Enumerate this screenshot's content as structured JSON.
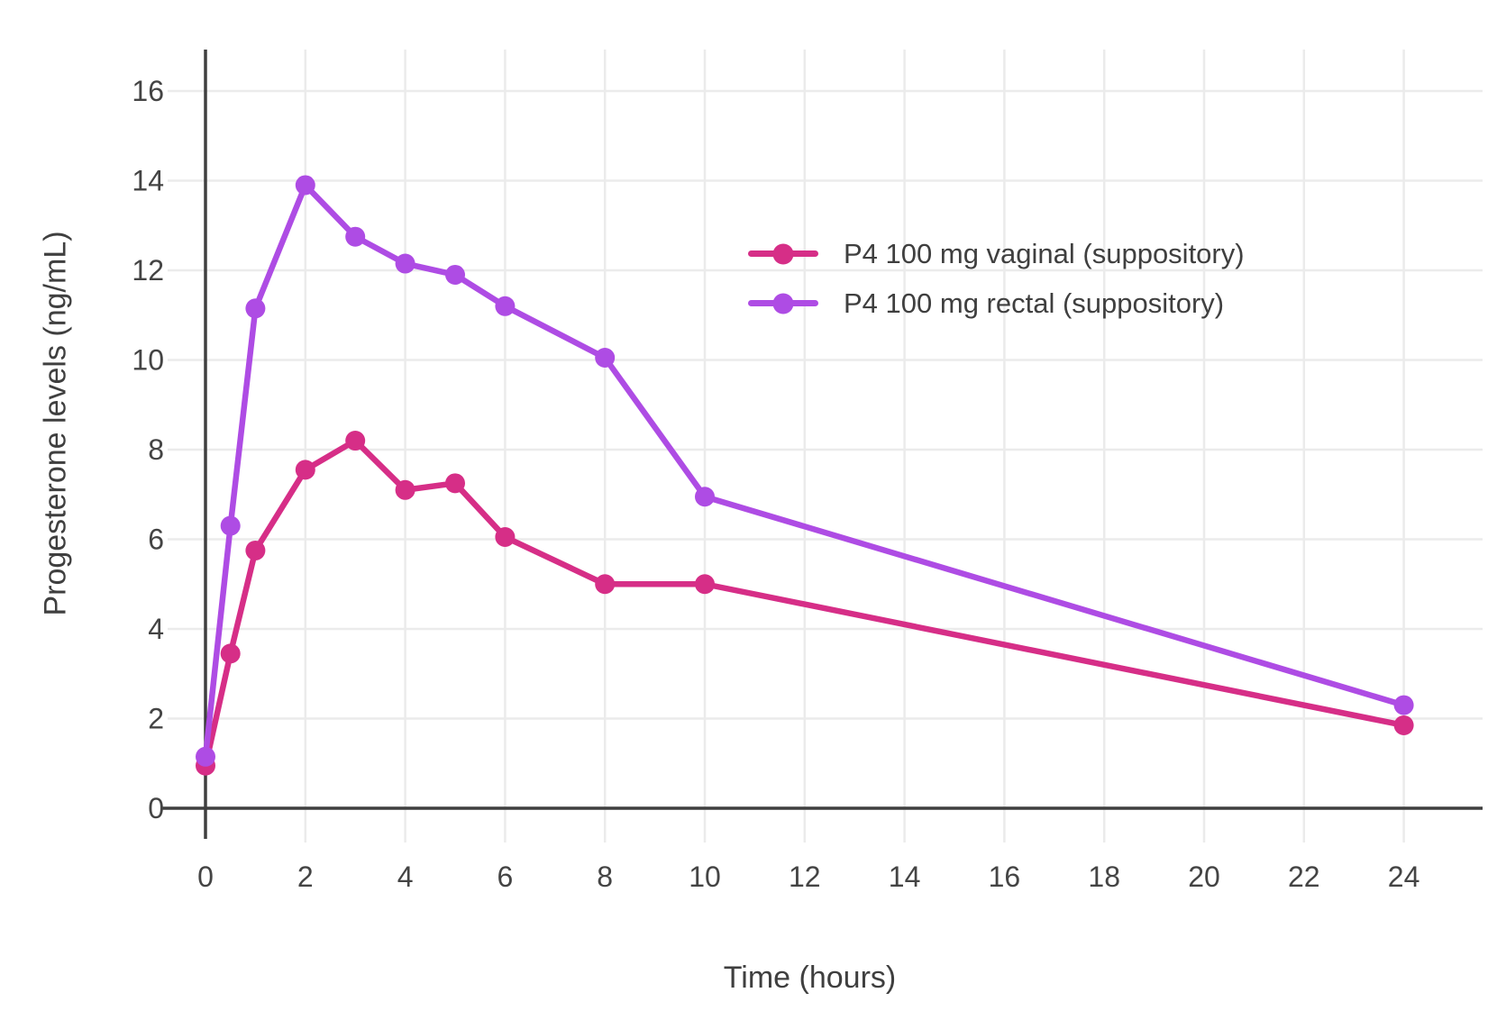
{
  "chart_data": {
    "type": "line",
    "title": "",
    "xlabel": "Time (hours)",
    "ylabel": "Progesterone levels (ng/mL)",
    "x": [
      0,
      0.5,
      1,
      2,
      3,
      4,
      5,
      6,
      8,
      10,
      24
    ],
    "series": [
      {
        "name": "P4 100 mg vaginal (suppository)",
        "color": "#d62e87",
        "values": [
          0.95,
          3.45,
          5.75,
          7.55,
          8.2,
          7.1,
          7.25,
          6.05,
          5.0,
          5.0,
          1.85
        ]
      },
      {
        "name": "P4 100 mg rectal (suppository)",
        "color": "#ae4ce4",
        "values": [
          1.15,
          6.3,
          11.15,
          13.9,
          12.75,
          12.15,
          11.9,
          11.2,
          10.05,
          6.95,
          2.3
        ]
      }
    ],
    "xticks": [
      0,
      2,
      4,
      6,
      8,
      10,
      12,
      14,
      16,
      18,
      20,
      22,
      24
    ],
    "yticks": [
      0,
      2,
      4,
      6,
      8,
      10,
      12,
      14,
      16
    ],
    "xlim": [
      0,
      25.6
    ],
    "ylim": [
      0,
      16.9
    ],
    "grid": true,
    "legend_position": "inside-upper-right",
    "axis_color": "#3f3f3f",
    "grid_color": "#ebebeb",
    "text_color": "#444444"
  }
}
